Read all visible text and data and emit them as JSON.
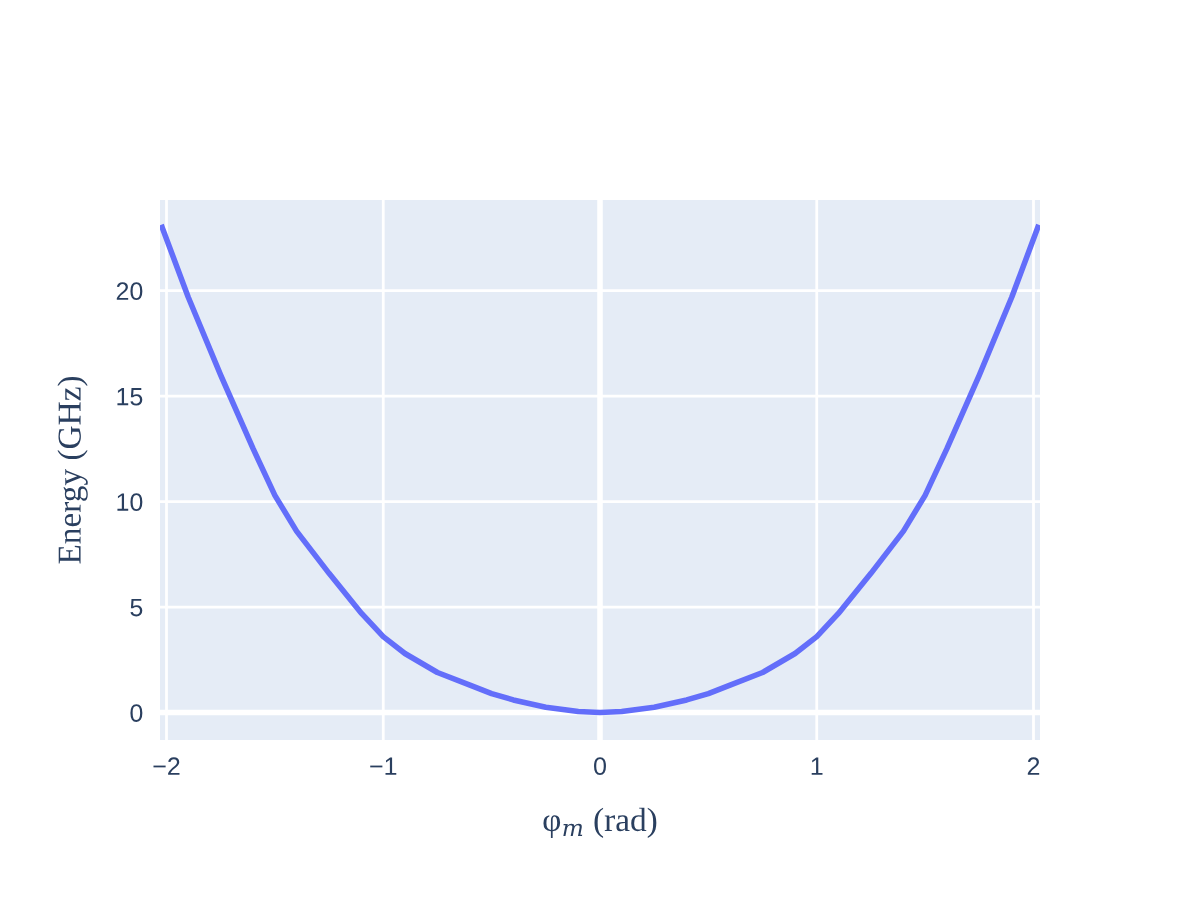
{
  "chart_data": {
    "type": "line",
    "xlabel": "φ$_{m}$ (rad)",
    "ylabel": "Energy (GHz)",
    "series": [
      {
        "color": "#636efa",
        "x": [
          -2.02,
          -1.9,
          -1.75,
          -1.6,
          -1.5,
          -1.4,
          -1.25,
          -1.1,
          -1.0,
          -0.9,
          -0.75,
          -0.6,
          -0.5,
          -0.4,
          -0.25,
          -0.1,
          0,
          0.1,
          0.25,
          0.4,
          0.5,
          0.6,
          0.75,
          0.9,
          1.0,
          1.1,
          1.25,
          1.4,
          1.5,
          1.6,
          1.75,
          1.9,
          2.02
        ],
        "values": [
          23.0,
          19.7,
          16.0,
          12.5,
          10.3,
          8.6,
          6.6,
          4.7,
          3.6,
          2.8,
          1.9,
          1.3,
          0.9,
          0.6,
          0.25,
          0.05,
          0,
          0.05,
          0.25,
          0.6,
          0.9,
          1.3,
          1.9,
          2.8,
          3.6,
          4.7,
          6.6,
          8.6,
          10.3,
          12.5,
          16.0,
          19.7,
          23.0
        ]
      }
    ],
    "xlim": [
      -2.03,
      2.03
    ],
    "ylim": [
      -1.3,
      24.3
    ],
    "xticks": [
      -2,
      -1,
      0,
      1,
      2
    ],
    "yticks": [
      0,
      5,
      10,
      15,
      20
    ],
    "grid": true,
    "line_style": "solid",
    "marker": "none"
  }
}
